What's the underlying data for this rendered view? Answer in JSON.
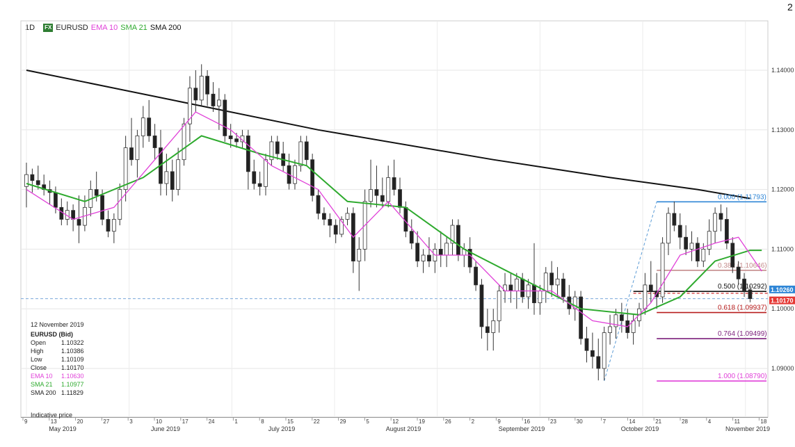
{
  "header": {
    "timeframe": "1D",
    "badge": "FX",
    "symbol": "EURUSD",
    "indicators": [
      {
        "label": "EMA 10",
        "color": "#e040d8"
      },
      {
        "label": "SMA 21",
        "color": "#2eaa2e"
      },
      {
        "label": "SMA 200",
        "color": "#111111"
      }
    ],
    "corner_glyph": "2"
  },
  "info": {
    "date": "12 November 2019",
    "instrument": "EURUSD (Bid)",
    "rows": [
      {
        "k": "Open",
        "v": "1.10322",
        "color": "#222"
      },
      {
        "k": "High",
        "v": "1.10386",
        "color": "#222"
      },
      {
        "k": "Low",
        "v": "1.10109",
        "color": "#222"
      },
      {
        "k": "Close",
        "v": "1.10170",
        "color": "#222"
      },
      {
        "k": "EMA 10",
        "v": "1.10630",
        "color": "#e040d8"
      },
      {
        "k": "SMA 21",
        "v": "1.10977",
        "color": "#2eaa2e"
      },
      {
        "k": "SMA 200",
        "v": "1.11829",
        "color": "#222"
      }
    ],
    "footnote": "Indicative price"
  },
  "price_tags": [
    {
      "label": "1.10260",
      "price": 1.1026,
      "color": "#2f86d6"
    },
    {
      "label": "1.10170",
      "price": 1.1017,
      "color": "#e53935"
    }
  ],
  "chart_data": {
    "type": "candlestick",
    "y_ticks": [
      {
        "v": 1.14,
        "label": "1.14000"
      },
      {
        "v": 1.13,
        "label": "1.13000"
      },
      {
        "v": 1.12,
        "label": "1.12000"
      },
      {
        "v": 1.11,
        "label": "1.11000"
      },
      {
        "v": 1.1,
        "label": "1.10000"
      },
      {
        "v": 1.09,
        "label": "1.09000"
      }
    ],
    "x_ticks": [
      "9",
      "13",
      "20",
      "27",
      "3",
      "10",
      "17",
      "24",
      "1",
      "8",
      "15",
      "22",
      "29",
      "5",
      "12",
      "19",
      "26",
      "2",
      "9",
      "16",
      "23",
      "30",
      "7",
      "14",
      "21",
      "28",
      "4",
      "11",
      "18"
    ],
    "months": [
      {
        "label": "May 2019",
        "at": 3
      },
      {
        "label": "June 2019",
        "at": 24
      },
      {
        "label": "July 2019",
        "at": 46
      },
      {
        "label": "August 2019",
        "at": 69
      },
      {
        "label": "September 2019",
        "at": 91
      },
      {
        "label": "October 2019",
        "at": 113
      },
      {
        "label": "November 2019",
        "at": 130
      }
    ],
    "candles": [
      [
        1.1205,
        1.1245,
        1.117,
        1.1225
      ],
      [
        1.1225,
        1.1235,
        1.1195,
        1.1215
      ],
      [
        1.1215,
        1.124,
        1.12,
        1.1208
      ],
      [
        1.1208,
        1.1225,
        1.119,
        1.12
      ],
      [
        1.12,
        1.1215,
        1.1175,
        1.1195
      ],
      [
        1.1195,
        1.1205,
        1.116,
        1.117
      ],
      [
        1.117,
        1.1185,
        1.114,
        1.115
      ],
      [
        1.115,
        1.118,
        1.114,
        1.1165
      ],
      [
        1.1165,
        1.1175,
        1.113,
        1.115
      ],
      [
        1.115,
        1.119,
        1.111,
        1.114
      ],
      [
        1.114,
        1.119,
        1.113,
        1.117
      ],
      [
        1.117,
        1.1215,
        1.1155,
        1.12
      ],
      [
        1.12,
        1.123,
        1.118,
        1.119
      ],
      [
        1.119,
        1.12,
        1.114,
        1.115
      ],
      [
        1.115,
        1.1165,
        1.112,
        1.113
      ],
      [
        1.113,
        1.116,
        1.111,
        1.115
      ],
      [
        1.115,
        1.121,
        1.114,
        1.12
      ],
      [
        1.12,
        1.129,
        1.118,
        1.127
      ],
      [
        1.127,
        1.132,
        1.124,
        1.125
      ],
      [
        1.125,
        1.13,
        1.122,
        1.129
      ],
      [
        1.129,
        1.134,
        1.127,
        1.132
      ],
      [
        1.132,
        1.135,
        1.128,
        1.129
      ],
      [
        1.129,
        1.131,
        1.125,
        1.127
      ],
      [
        1.127,
        1.13,
        1.119,
        1.121
      ],
      [
        1.121,
        1.126,
        1.119,
        1.123
      ],
      [
        1.123,
        1.125,
        1.118,
        1.12
      ],
      [
        1.12,
        1.127,
        1.119,
        1.125
      ],
      [
        1.125,
        1.132,
        1.124,
        1.131
      ],
      [
        1.131,
        1.139,
        1.128,
        1.137
      ],
      [
        1.137,
        1.14,
        1.133,
        1.135
      ],
      [
        1.135,
        1.141,
        1.134,
        1.139
      ],
      [
        1.139,
        1.14,
        1.134,
        1.136
      ],
      [
        1.136,
        1.138,
        1.133,
        1.134
      ],
      [
        1.134,
        1.137,
        1.13,
        1.135
      ],
      [
        1.135,
        1.136,
        1.128,
        1.129
      ],
      [
        1.129,
        1.131,
        1.127,
        1.1285
      ],
      [
        1.1285,
        1.1295,
        1.127,
        1.128
      ],
      [
        1.128,
        1.13,
        1.127,
        1.129
      ],
      [
        1.129,
        1.13,
        1.12,
        1.123
      ],
      [
        1.123,
        1.125,
        1.12,
        1.121
      ],
      [
        1.121,
        1.123,
        1.119,
        1.1205
      ],
      [
        1.1205,
        1.126,
        1.119,
        1.125
      ],
      [
        1.125,
        1.129,
        1.124,
        1.128
      ],
      [
        1.128,
        1.129,
        1.125,
        1.126
      ],
      [
        1.126,
        1.128,
        1.123,
        1.124
      ],
      [
        1.124,
        1.126,
        1.12,
        1.121
      ],
      [
        1.121,
        1.125,
        1.12,
        1.124
      ],
      [
        1.124,
        1.129,
        1.123,
        1.128
      ],
      [
        1.128,
        1.129,
        1.124,
        1.125
      ],
      [
        1.125,
        1.126,
        1.118,
        1.119
      ],
      [
        1.119,
        1.12,
        1.115,
        1.116
      ],
      [
        1.116,
        1.117,
        1.114,
        1.115
      ],
      [
        1.115,
        1.116,
        1.112,
        1.114
      ],
      [
        1.114,
        1.115,
        1.111,
        1.1125
      ],
      [
        1.1125,
        1.1155,
        1.112,
        1.115
      ],
      [
        1.115,
        1.117,
        1.114,
        1.116
      ],
      [
        1.116,
        1.117,
        1.106,
        1.108
      ],
      [
        1.108,
        1.112,
        1.103,
        1.11
      ],
      [
        1.11,
        1.12,
        1.108,
        1.118
      ],
      [
        1.118,
        1.125,
        1.117,
        1.12
      ],
      [
        1.12,
        1.124,
        1.117,
        1.119
      ],
      [
        1.119,
        1.122,
        1.117,
        1.118
      ],
      [
        1.118,
        1.124,
        1.117,
        1.122
      ],
      [
        1.122,
        1.125,
        1.119,
        1.12
      ],
      [
        1.12,
        1.122,
        1.116,
        1.117
      ],
      [
        1.117,
        1.118,
        1.112,
        1.113
      ],
      [
        1.113,
        1.115,
        1.11,
        1.111
      ],
      [
        1.111,
        1.113,
        1.107,
        1.108
      ],
      [
        1.108,
        1.11,
        1.106,
        1.109
      ],
      [
        1.109,
        1.112,
        1.107,
        1.108
      ],
      [
        1.108,
        1.111,
        1.106,
        1.11
      ],
      [
        1.11,
        1.113,
        1.107,
        1.109
      ],
      [
        1.109,
        1.112,
        1.107,
        1.111
      ],
      [
        1.111,
        1.115,
        1.109,
        1.114
      ],
      [
        1.114,
        1.115,
        1.108,
        1.109
      ],
      [
        1.109,
        1.111,
        1.107,
        1.11
      ],
      [
        1.11,
        1.112,
        1.106,
        1.107
      ],
      [
        1.107,
        1.108,
        1.103,
        1.104
      ],
      [
        1.104,
        1.105,
        1.095,
        1.097
      ],
      [
        1.097,
        1.1,
        1.093,
        1.096
      ],
      [
        1.096,
        1.1,
        1.093,
        1.098
      ],
      [
        1.098,
        1.104,
        1.096,
        1.103
      ],
      [
        1.103,
        1.106,
        1.101,
        1.104
      ],
      [
        1.104,
        1.106,
        1.101,
        1.103
      ],
      [
        1.103,
        1.106,
        1.1,
        1.105
      ],
      [
        1.105,
        1.106,
        1.101,
        1.102
      ],
      [
        1.102,
        1.105,
        1.1,
        1.104
      ],
      [
        1.104,
        1.111,
        1.099,
        1.101
      ],
      [
        1.101,
        1.104,
        1.099,
        1.103
      ],
      [
        1.103,
        1.107,
        1.101,
        1.106
      ],
      [
        1.106,
        1.108,
        1.102,
        1.104
      ],
      [
        1.104,
        1.107,
        1.102,
        1.105
      ],
      [
        1.105,
        1.106,
        1.101,
        1.102
      ],
      [
        1.102,
        1.104,
        1.099,
        1.1
      ],
      [
        1.1,
        1.103,
        1.098,
        1.102
      ],
      [
        1.102,
        1.103,
        1.094,
        1.095
      ],
      [
        1.095,
        1.097,
        1.091,
        1.093
      ],
      [
        1.093,
        1.096,
        1.09,
        1.092
      ],
      [
        1.092,
        1.095,
        1.088,
        1.09
      ],
      [
        1.09,
        1.097,
        1.088,
        1.096
      ],
      [
        1.096,
        1.099,
        1.094,
        1.097
      ],
      [
        1.097,
        1.1,
        1.095,
        1.099
      ],
      [
        1.099,
        1.101,
        1.096,
        1.098
      ],
      [
        1.098,
        1.1,
        1.095,
        1.096
      ],
      [
        1.096,
        1.099,
        1.094,
        1.098
      ],
      [
        1.098,
        1.101,
        1.097,
        1.1
      ],
      [
        1.1,
        1.106,
        1.099,
        1.104
      ],
      [
        1.104,
        1.108,
        1.101,
        1.103
      ],
      [
        1.103,
        1.106,
        1.1,
        1.102
      ],
      [
        1.102,
        1.112,
        1.101,
        1.111
      ],
      [
        1.111,
        1.117,
        1.109,
        1.116
      ],
      [
        1.116,
        1.118,
        1.113,
        1.114
      ],
      [
        1.114,
        1.116,
        1.11,
        1.112
      ],
      [
        1.112,
        1.114,
        1.109,
        1.11
      ],
      [
        1.11,
        1.113,
        1.108,
        1.111
      ],
      [
        1.111,
        1.112,
        1.107,
        1.108
      ],
      [
        1.108,
        1.111,
        1.107,
        1.11
      ],
      [
        1.11,
        1.115,
        1.109,
        1.113
      ],
      [
        1.113,
        1.117,
        1.111,
        1.116
      ],
      [
        1.116,
        1.1175,
        1.113,
        1.115
      ],
      [
        1.115,
        1.117,
        1.11,
        1.111
      ],
      [
        1.111,
        1.112,
        1.106,
        1.107
      ],
      [
        1.107,
        1.108,
        1.104,
        1.105
      ],
      [
        1.105,
        1.106,
        1.102,
        1.103
      ],
      [
        1.1032,
        1.1039,
        1.1011,
        1.1017
      ]
    ],
    "sma200": [
      [
        0,
        1.14
      ],
      [
        25,
        1.135
      ],
      [
        50,
        1.13
      ],
      [
        80,
        1.125
      ],
      [
        100,
        1.122
      ],
      [
        115,
        1.12
      ],
      [
        124,
        1.1185
      ]
    ],
    "sma21": [
      [
        0,
        1.121
      ],
      [
        10,
        1.118
      ],
      [
        20,
        1.122
      ],
      [
        30,
        1.129
      ],
      [
        40,
        1.126
      ],
      [
        48,
        1.124
      ],
      [
        55,
        1.118
      ],
      [
        65,
        1.117
      ],
      [
        75,
        1.11
      ],
      [
        85,
        1.105
      ],
      [
        95,
        1.1
      ],
      [
        105,
        1.099
      ],
      [
        112,
        1.102
      ],
      [
        118,
        1.108
      ],
      [
        124,
        1.1098
      ],
      [
        126,
        1.1098
      ]
    ],
    "ema10": [
      [
        0,
        1.12
      ],
      [
        8,
        1.115
      ],
      [
        15,
        1.117
      ],
      [
        22,
        1.125
      ],
      [
        29,
        1.133
      ],
      [
        35,
        1.13
      ],
      [
        42,
        1.124
      ],
      [
        50,
        1.12
      ],
      [
        56,
        1.112
      ],
      [
        62,
        1.118
      ],
      [
        70,
        1.109
      ],
      [
        76,
        1.109
      ],
      [
        82,
        1.103
      ],
      [
        90,
        1.103
      ],
      [
        97,
        1.098
      ],
      [
        103,
        1.097
      ],
      [
        107,
        1.101
      ],
      [
        112,
        1.109
      ],
      [
        118,
        1.111
      ],
      [
        122,
        1.112
      ],
      [
        126,
        1.1063
      ]
    ],
    "fib_levels": [
      {
        "label": "0.000 (1.11793)",
        "price": 1.11793,
        "color": "#2f86d6",
        "from": 108
      },
      {
        "label": "0.382 (1.10646)",
        "price": 1.10646,
        "color": "#c48b8b",
        "from": 108
      },
      {
        "label": "0.500 (1.10292)",
        "price": 1.10292,
        "color": "#111111",
        "from": 104
      },
      {
        "label": "0.618 (1.09937)",
        "price": 1.09937,
        "color": "#b71c1c",
        "from": 108
      },
      {
        "label": "0.764 (1.09499)",
        "price": 1.09499,
        "color": "#7b1f7b",
        "from": 108
      },
      {
        "label": "1.000 (1.08790)",
        "price": 1.0879,
        "color": "#e040d8",
        "from": 108
      }
    ],
    "fib_trend": [
      [
        99,
        1.0879
      ],
      [
        108,
        1.11793
      ]
    ],
    "ref_line": 1.1017
  }
}
